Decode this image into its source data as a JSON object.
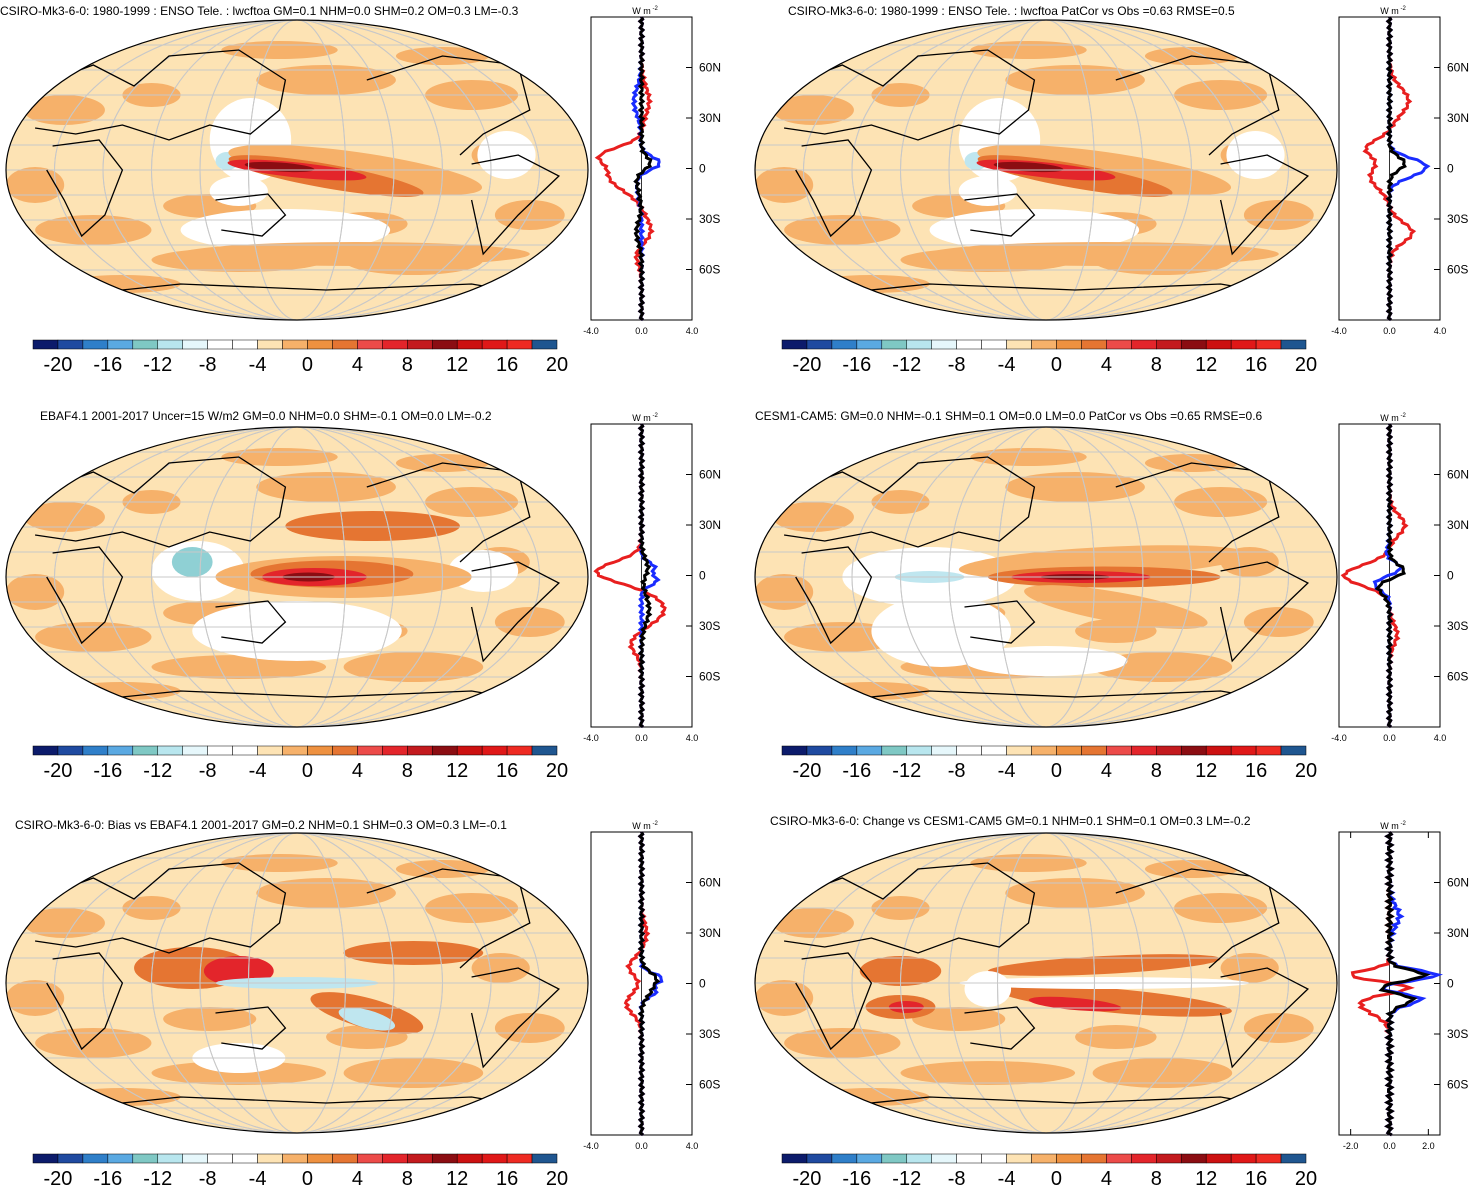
{
  "colors": {
    "scale": [
      "#0c1b6b",
      "#1f4aa0",
      "#2f7fc9",
      "#5aa9e2",
      "#7fc8c4",
      "#b8e6ee",
      "#e6f7fb",
      "#ffffff",
      "#ffffff",
      "#fde3b4",
      "#f6b16a",
      "#ee9140",
      "#e57532",
      "#ec4b49",
      "#e3252b",
      "#c31a1e",
      "#8b0d12",
      "#cc1111",
      "#e01818",
      "#ee2a22",
      "#1f5690"
    ],
    "fill_white": "#ffffff",
    "fill_light": "#fde3b4",
    "fill_mid": "#f6b16a",
    "fill_strong": "#e57532",
    "fill_red": "#e3252b",
    "fill_dark": "#8b0d12",
    "fill_blue": "#bfe6ef",
    "line_red": "#e81f1f",
    "line_blue": "#1a2cff",
    "line_black": "#000000",
    "grid": "#c8c8c8"
  },
  "colorbar": {
    "labels": [
      "-20",
      "-16",
      "-12",
      "-8",
      "-4",
      "0",
      "4",
      "8",
      "12",
      "16",
      "20"
    ]
  },
  "profile": {
    "unit": "W m",
    "unit_exp": "-2",
    "lat_labels": [
      "60N",
      "30N",
      "0",
      "30S",
      "60S"
    ],
    "x_labels_wide": [
      "-4.0",
      "0.0",
      "4.0"
    ],
    "x_labels_narrow": [
      "-2.0",
      "0.0",
      "2.0"
    ]
  },
  "panels": [
    {
      "title": "CSIRO-Mk3-6-0: 1980-1999 : ENSO Tele. : lwcftoa GM=0.1 NHM=0.0 SHM=0.2 OM=0.3 LM=-0.3",
      "pattern": "model"
    },
    {
      "title": "CSIRO-Mk3-6-0: 1980-1999 : ENSO Tele. : lwcftoa PatCor vs Obs =0.63 RMSE=0.5",
      "pattern": "model"
    },
    {
      "title": "EBAF4.1 2001-2017 Uncer=15 W/m2 GM=0.0 NHM=0.0 SHM=-0.1 OM=0.0 LM=-0.2",
      "pattern": "obs"
    },
    {
      "title": "CESM1-CAM5: GM=0.0 NHM=-0.1 SHM=0.1 OM=0.0 LM=0.0 PatCor vs Obs =0.65 RMSE=0.6",
      "pattern": "cesm"
    },
    {
      "title": "CSIRO-Mk3-6-0: Bias vs EBAF4.1 2001-2017 GM=0.2 NHM=0.1 SHM=0.3 OM=0.3 LM=-0.1",
      "pattern": "bias"
    },
    {
      "title": "CSIRO-Mk3-6-0: Change vs CESM1-CAM5 GM=0.1 NHM=0.1 SHM=0.1 OM=0.3 LM=-0.2",
      "pattern": "change"
    }
  ]
}
